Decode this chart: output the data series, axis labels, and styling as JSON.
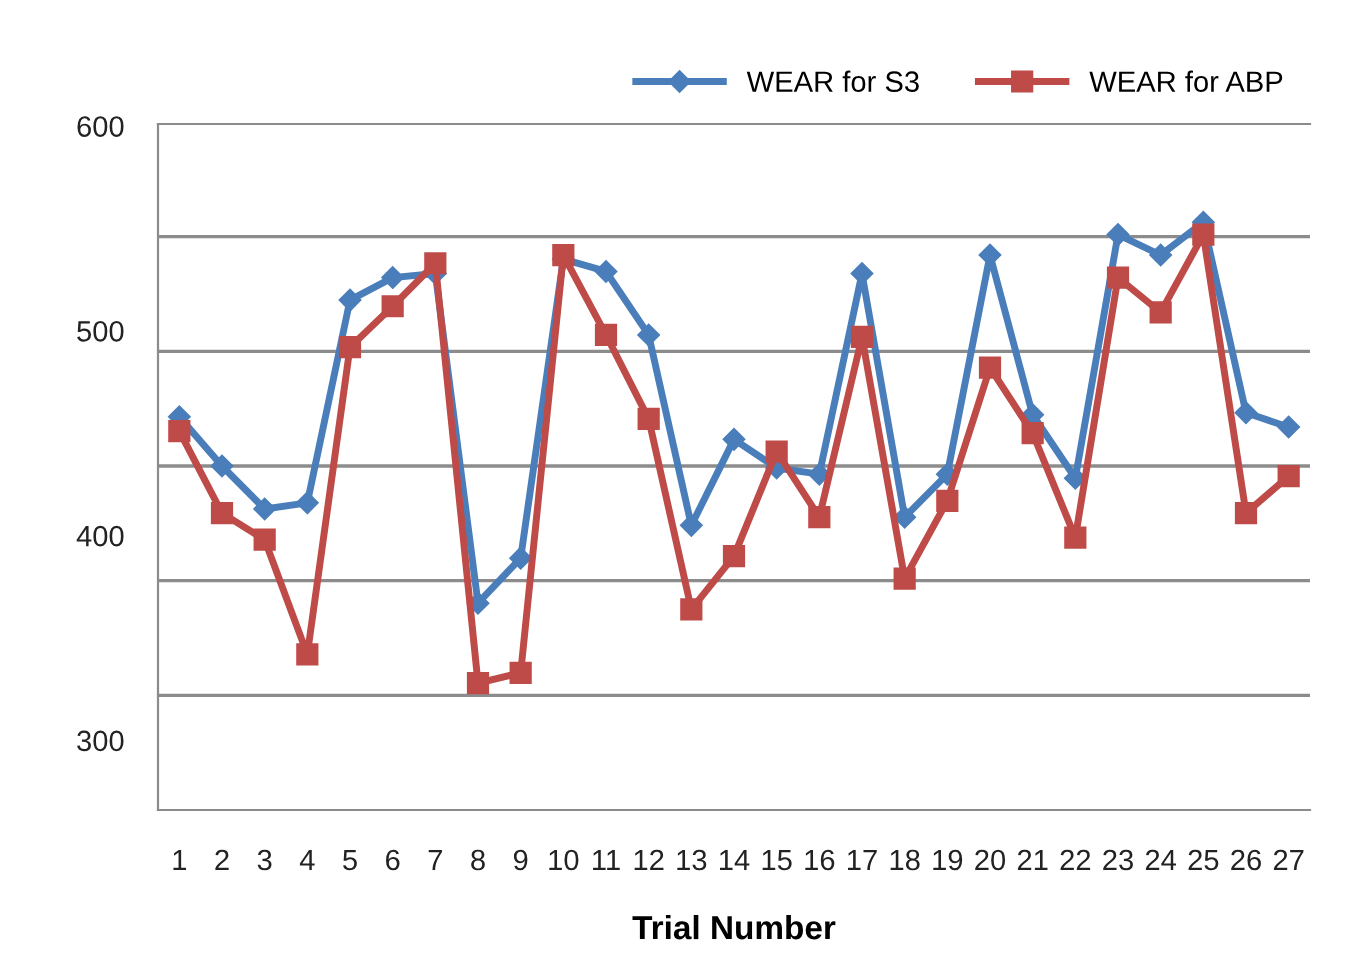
{
  "chart_data": {
    "type": "line",
    "xlabel": "Trial Number",
    "categories": [
      "1",
      "2",
      "3",
      "4",
      "5",
      "6",
      "7",
      "8",
      "9",
      "10",
      "11",
      "12",
      "13",
      "14",
      "15",
      "16",
      "17",
      "18",
      "19",
      "20",
      "21",
      "22",
      "23",
      "24",
      "25",
      "26",
      "27"
    ],
    "series": [
      {
        "name": "WEAR for S3",
        "color": "#4a7ebb",
        "marker": "diamond",
        "values": [
          458,
          434,
          413,
          416,
          515,
          526,
          528,
          367,
          389,
          535,
          529,
          498,
          405,
          447,
          433,
          430,
          528,
          409,
          430,
          537,
          459,
          428,
          547,
          537,
          553,
          460,
          453
        ]
      },
      {
        "name": "WEAR for ABP",
        "color": "#be4b48",
        "marker": "square",
        "values": [
          451,
          411,
          398,
          342,
          492,
          512,
          533,
          328,
          333,
          537,
          498,
          457,
          364,
          390,
          441,
          409,
          497,
          379,
          417,
          482,
          450,
          399,
          526,
          509,
          547,
          411,
          429
        ]
      }
    ],
    "ylim": [
      266,
      601
    ],
    "yticks": [
      600,
      500,
      400,
      300,
      {
        "value": 546,
        "label": null
      },
      {
        "value": 490,
        "label": null
      },
      {
        "value": 434,
        "label": null
      },
      {
        "value": 378,
        "label": null
      },
      {
        "value": 322,
        "label": null
      }
    ],
    "grid": "y",
    "legend": "top right",
    "line_style": "solid"
  }
}
